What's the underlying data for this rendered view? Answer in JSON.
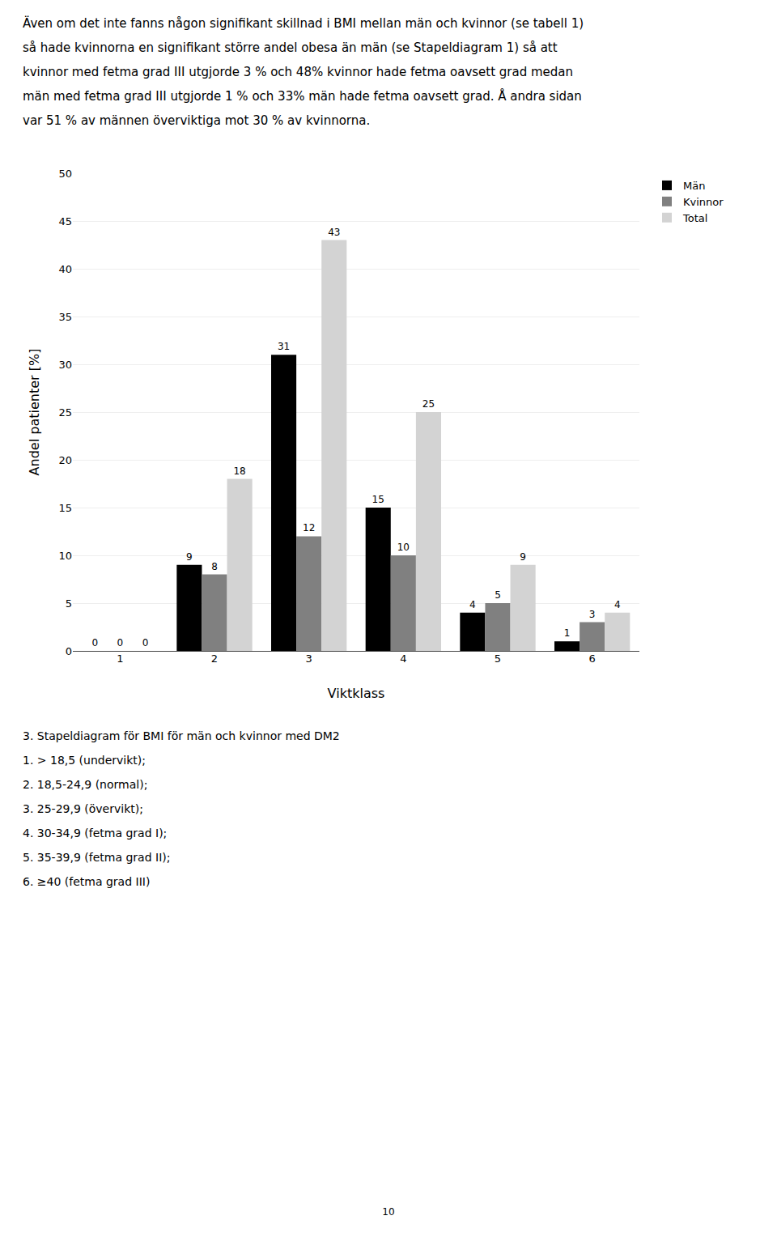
{
  "chart_data": {
    "type": "bar",
    "subtitle": [
      "Även om det inte fanns någon signifikant skillnad i BMI mellan män och kvinnor (se tabell 1)",
      "så hade kvinnorna en signifikant större andel obesa än män (se Stapeldiagram 1) så att",
      "kvinnor med fetma grad III utgjorde 3 % och 48% kvinnor hade fetma oavsett grad medan",
      "män med fetma grad III utgjorde 1 % och 33% män hade fetma oavsett grad. Å andra sidan",
      "var 51 % av männen överviktiga mot 30 % av kvinnorna."
    ],
    "categories": [
      1,
      2,
      3,
      4,
      5,
      6
    ],
    "series": [
      {
        "name": "Män",
        "color": "#000000",
        "values": [
          0,
          9,
          31,
          15,
          4,
          1
        ]
      },
      {
        "name": "Kvinnor",
        "color": "#808080",
        "values": [
          0,
          8,
          12,
          10,
          5,
          3
        ]
      },
      {
        "name": "Total",
        "color": "#d3d3d3",
        "values": [
          0,
          18,
          43,
          25,
          9,
          4
        ]
      }
    ],
    "y_label": "Andel patienter [%]",
    "x_label": "Viktklass",
    "ylim": [
      0,
      50
    ],
    "yticks": [
      0,
      5,
      10,
      15,
      20,
      25,
      30,
      35,
      40,
      45,
      50
    ],
    "grid": true,
    "legend": "upper right",
    "data_labels": true,
    "annotations": [
      "3. Stapeldiagram för BMI för män och kvinnor med DM2",
      "1. > 18,5 (undervikt);",
      "2. 18,5-24,9 (normal);",
      "3. 25-29,9 (övervikt);",
      "4. 30-34,9 (fetma grad I);",
      "5. 35-39,9 (fetma grad II);",
      "6. ≥40 (fetma grad III)",
      "10"
    ]
  }
}
